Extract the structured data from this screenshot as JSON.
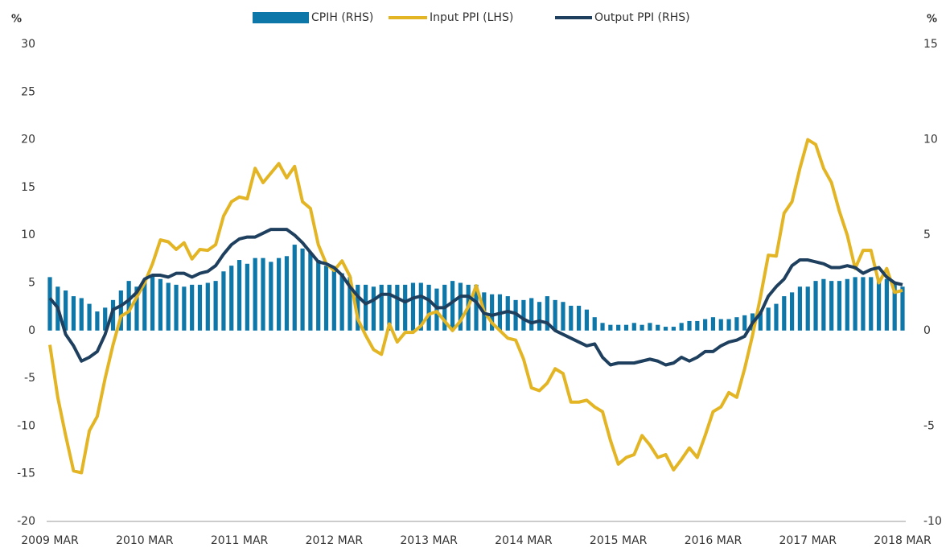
{
  "chart_data": {
    "type": "bar",
    "left_unit": "%",
    "right_unit": "%",
    "categories": [
      "2009 MAR",
      null,
      null,
      null,
      null,
      null,
      null,
      null,
      null,
      null,
      null,
      null,
      "2010 MAR",
      null,
      null,
      null,
      null,
      null,
      null,
      null,
      null,
      null,
      null,
      null,
      "2011 MAR",
      null,
      null,
      null,
      null,
      null,
      null,
      null,
      null,
      null,
      null,
      null,
      "2012 MAR",
      null,
      null,
      null,
      null,
      null,
      null,
      null,
      null,
      null,
      null,
      null,
      "2013 MAR",
      null,
      null,
      null,
      null,
      null,
      null,
      null,
      null,
      null,
      null,
      null,
      "2014 MAR",
      null,
      null,
      null,
      null,
      null,
      null,
      null,
      null,
      null,
      null,
      null,
      "2015 MAR",
      null,
      null,
      null,
      null,
      null,
      null,
      null,
      null,
      null,
      null,
      null,
      "2016 MAR",
      null,
      null,
      null,
      null,
      null,
      null,
      null,
      null,
      null,
      null,
      null,
      "2017 MAR",
      null,
      null,
      null,
      null,
      null,
      null,
      null,
      null,
      null,
      null,
      null,
      "2018 MAR"
    ],
    "series": [
      {
        "name": "CPIH (RHS)",
        "type": "bar",
        "axis": "y2",
        "color": "#0e77aa",
        "values": [
          2.8,
          2.3,
          2.1,
          1.8,
          1.7,
          1.4,
          1.0,
          1.2,
          1.6,
          2.1,
          2.6,
          2.3,
          2.7,
          2.9,
          2.7,
          2.5,
          2.4,
          2.3,
          2.4,
          2.4,
          2.5,
          2.6,
          3.1,
          3.4,
          3.7,
          3.5,
          3.8,
          3.8,
          3.6,
          3.8,
          3.9,
          4.5,
          4.3,
          4.1,
          3.7,
          3.4,
          3.3,
          3.0,
          2.8,
          2.4,
          2.4,
          2.3,
          2.4,
          2.4,
          2.4,
          2.4,
          2.5,
          2.5,
          2.4,
          2.2,
          2.4,
          2.6,
          2.5,
          2.4,
          2.4,
          2.0,
          1.9,
          1.9,
          1.8,
          1.6,
          1.6,
          1.7,
          1.5,
          1.8,
          1.6,
          1.5,
          1.3,
          1.3,
          1.1,
          0.7,
          0.4,
          0.3,
          0.3,
          0.3,
          0.4,
          0.3,
          0.4,
          0.3,
          0.2,
          0.2,
          0.4,
          0.5,
          0.5,
          0.6,
          0.7,
          0.6,
          0.6,
          0.7,
          0.8,
          0.9,
          1.0,
          1.2,
          1.4,
          1.8,
          2.0,
          2.3,
          2.3,
          2.6,
          2.7,
          2.6,
          2.6,
          2.7,
          2.8,
          2.8,
          2.8,
          2.7,
          2.7,
          2.5,
          2.3
        ]
      },
      {
        "name": "Input PPI (LHS)",
        "type": "line",
        "axis": "y",
        "color": "#e3b524",
        "values": [
          -1.5,
          -7,
          -11,
          -14.7,
          -14.9,
          -10.5,
          -9,
          -5,
          -1.5,
          1.5,
          2,
          3.5,
          5,
          7,
          9.5,
          9.3,
          8.5,
          9.2,
          7.5,
          8.5,
          8.4,
          9,
          12,
          13.5,
          14,
          13.8,
          17,
          15.5,
          16.5,
          17.5,
          16,
          17.2,
          13.5,
          12.8,
          9,
          7,
          6.3,
          7.3,
          5.7,
          1.2,
          -0.5,
          -2,
          -2.5,
          0.7,
          -1.2,
          -0.2,
          -0.2,
          0.5,
          1.7,
          2,
          1,
          0,
          1,
          2.5,
          4.7,
          2,
          0.8,
          0,
          -0.8,
          -1,
          -3,
          -6,
          -6.3,
          -5.5,
          -4,
          -4.5,
          -7.5,
          -7.5,
          -7.3,
          -8,
          -8.5,
          -11.5,
          -14,
          -13.3,
          -13,
          -11,
          -12,
          -13.3,
          -13,
          -14.6,
          -13.5,
          -12.3,
          -13.3,
          -11,
          -8.5,
          -8,
          -6.5,
          -7,
          -4,
          -0.5,
          3.5,
          7.9,
          7.8,
          12.3,
          13.5,
          17,
          20,
          19.5,
          17,
          15.5,
          12.5,
          10,
          6.5,
          8.4,
          8.4,
          5,
          6.5,
          4,
          4.2
        ]
      },
      {
        "name": "Output PPI (RHS)",
        "type": "line",
        "axis": "y2",
        "color": "#1e3f5e",
        "values": [
          1.7,
          1.2,
          -0.2,
          -0.8,
          -1.6,
          -1.4,
          -1.1,
          -0.2,
          1.1,
          1.3,
          1.6,
          2.0,
          2.7,
          2.9,
          2.9,
          2.8,
          3.0,
          3.0,
          2.8,
          3.0,
          3.1,
          3.4,
          4.0,
          4.5,
          4.8,
          4.9,
          4.9,
          5.1,
          5.3,
          5.3,
          5.3,
          5.0,
          4.6,
          4.1,
          3.6,
          3.5,
          3.3,
          2.9,
          2.3,
          1.8,
          1.4,
          1.6,
          1.9,
          1.9,
          1.7,
          1.5,
          1.7,
          1.8,
          1.6,
          1.2,
          1.2,
          1.5,
          1.8,
          1.8,
          1.5,
          0.9,
          0.8,
          0.9,
          1.0,
          0.9,
          0.6,
          0.4,
          0.5,
          0.4,
          0.0,
          -0.2,
          -0.4,
          -0.6,
          -0.8,
          -0.7,
          -1.4,
          -1.8,
          -1.7,
          -1.7,
          -1.7,
          -1.6,
          -1.5,
          -1.6,
          -1.8,
          -1.7,
          -1.4,
          -1.6,
          -1.4,
          -1.1,
          -1.1,
          -0.8,
          -0.6,
          -0.5,
          -0.3,
          0.4,
          0.9,
          1.8,
          2.3,
          2.7,
          3.4,
          3.7,
          3.7,
          3.6,
          3.5,
          3.3,
          3.3,
          3.4,
          3.3,
          3.0,
          3.2,
          3.3,
          2.8,
          2.5,
          2.4
        ]
      }
    ],
    "ylim": [
      -20,
      30
    ],
    "yticks": [
      -20,
      -15,
      -10,
      -5,
      0,
      5,
      10,
      15,
      20,
      25,
      30
    ],
    "y2lim": [
      -10,
      15
    ],
    "y2ticks": [
      -10,
      -5,
      0,
      5,
      10,
      15
    ]
  }
}
